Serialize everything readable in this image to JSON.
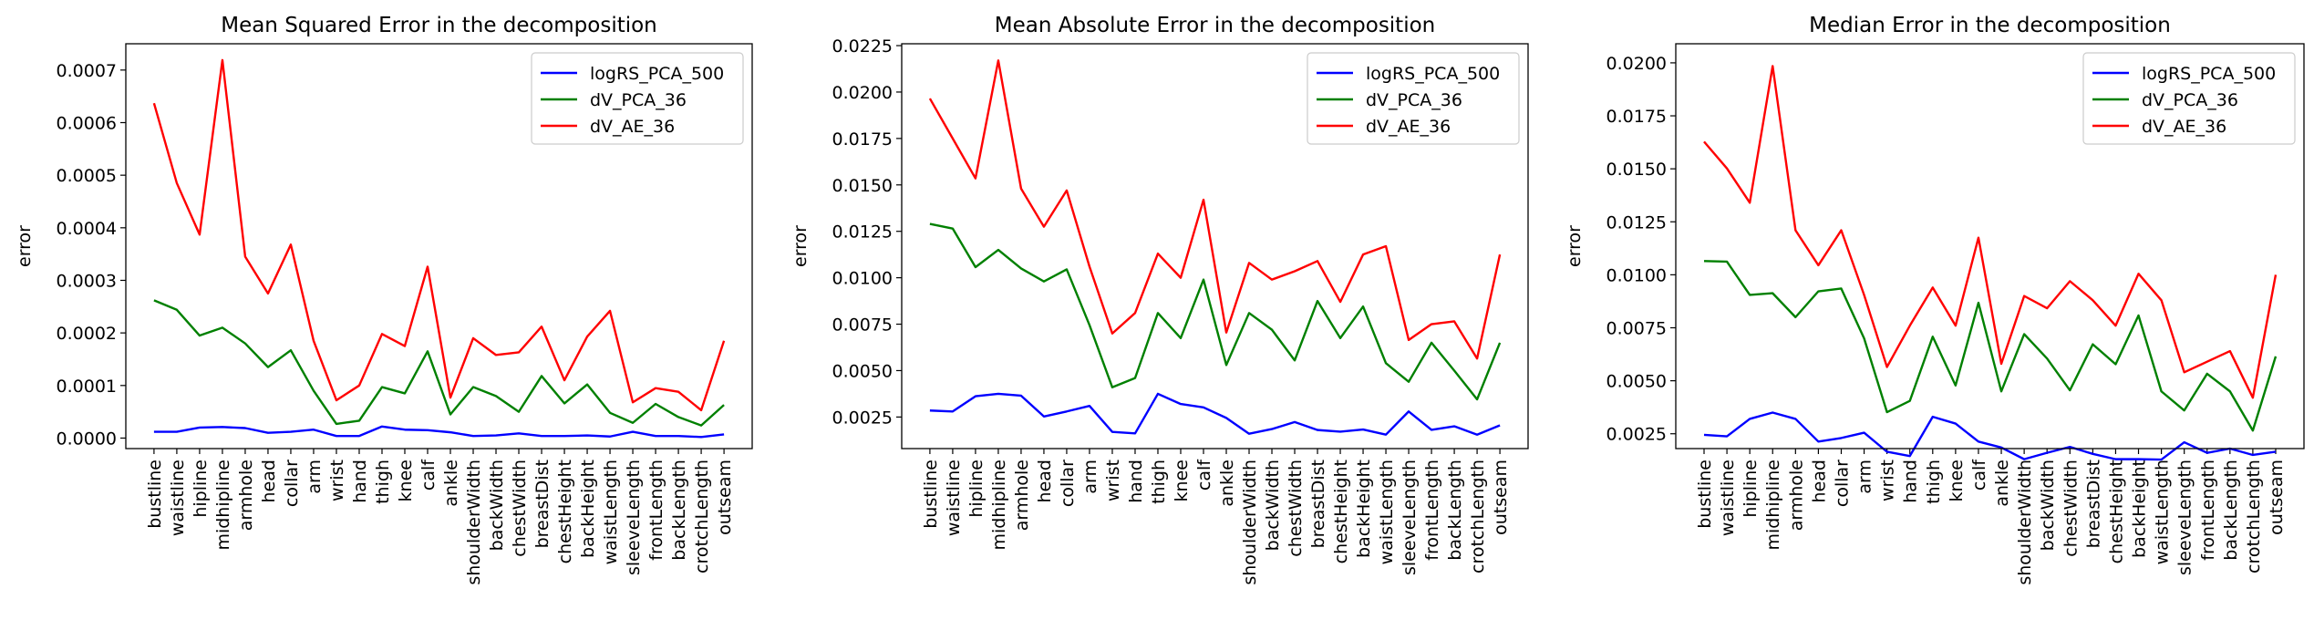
{
  "chart_data": [
    {
      "type": "line",
      "title": "Mean Squared Error in the decomposition",
      "xlabel": "",
      "ylabel": "error",
      "ylim": [
        -2e-05,
        0.00075
      ],
      "yticks": [
        0.0,
        0.0001,
        0.0002,
        0.0003,
        0.0004,
        0.0005,
        0.0006,
        0.0007
      ],
      "ytick_labels": [
        "0.0000",
        "0.0001",
        "0.0002",
        "0.0003",
        "0.0004",
        "0.0005",
        "0.0006",
        "0.0007"
      ],
      "legend_position": "top-right",
      "categories": [
        "bustline",
        "waistline",
        "hipline",
        "midhipline",
        "armhole",
        "head",
        "collar",
        "arm",
        "wrist",
        "hand",
        "thigh",
        "knee",
        "calf",
        "ankle",
        "shoulderWidth",
        "backWidth",
        "chestWidth",
        "breastDist",
        "chestHeight",
        "backHeight",
        "waistLength",
        "sleeveLength",
        "frontLength",
        "backLength",
        "crotchLength",
        "outseam"
      ],
      "series": [
        {
          "name": "logRS_PCA_500",
          "color": "#0000ff",
          "values": [
            1.2e-05,
            1.2e-05,
            2e-05,
            2.1e-05,
            1.9e-05,
            1e-05,
            1.2e-05,
            1.6e-05,
            4e-06,
            4e-06,
            2.2e-05,
            1.6e-05,
            1.5e-05,
            1.1e-05,
            4e-06,
            5e-06,
            9e-06,
            4e-06,
            4e-06,
            5e-06,
            3e-06,
            1.2e-05,
            4e-06,
            4e-06,
            2e-06,
            7e-06
          ]
        },
        {
          "name": "dV_PCA_36",
          "color": "#008000",
          "values": [
            0.000262,
            0.000244,
            0.000195,
            0.00021,
            0.00018,
            0.000135,
            0.000167,
            9e-05,
            2.7e-05,
            3.3e-05,
            9.7e-05,
            8.5e-05,
            0.000165,
            4.5e-05,
            9.7e-05,
            8e-05,
            5e-05,
            0.000118,
            6.6e-05,
            0.000102,
            4.8e-05,
            2.9e-05,
            6.5e-05,
            4e-05,
            2.4e-05,
            6.3e-05
          ]
        },
        {
          "name": "dV_AE_36",
          "color": "#ff0000",
          "values": [
            0.000637,
            0.000485,
            0.000387,
            0.000719,
            0.000345,
            0.000275,
            0.000368,
            0.000185,
            7.2e-05,
            0.0001,
            0.000198,
            0.000175,
            0.000326,
            7.7e-05,
            0.00019,
            0.000158,
            0.000163,
            0.000212,
            0.00011,
            0.000193,
            0.000242,
            6.8e-05,
            9.5e-05,
            8.8e-05,
            5.3e-05,
            0.000185
          ]
        }
      ]
    },
    {
      "type": "line",
      "title": "Mean Absolute Error in the decomposition",
      "xlabel": "",
      "ylabel": "error",
      "ylim": [
        0.0008,
        0.0226
      ],
      "yticks": [
        0.0025,
        0.005,
        0.0075,
        0.01,
        0.0125,
        0.015,
        0.0175,
        0.02,
        0.0225
      ],
      "ytick_labels": [
        "0.0025",
        "0.0050",
        "0.0075",
        "0.0100",
        "0.0125",
        "0.0150",
        "0.0175",
        "0.0200",
        "0.0225"
      ],
      "legend_position": "top-right",
      "categories": [
        "bustline",
        "waistline",
        "hipline",
        "midhipline",
        "armhole",
        "head",
        "collar",
        "arm",
        "wrist",
        "hand",
        "thigh",
        "knee",
        "calf",
        "ankle",
        "shoulderWidth",
        "backWidth",
        "chestWidth",
        "breastDist",
        "chestHeight",
        "backHeight",
        "waistLength",
        "sleeveLength",
        "frontLength",
        "backLength",
        "crotchLength",
        "outseam"
      ],
      "series": [
        {
          "name": "logRS_PCA_500",
          "color": "#0000ff",
          "values": [
            0.00285,
            0.0028,
            0.00362,
            0.00375,
            0.00365,
            0.00253,
            0.0028,
            0.0031,
            0.0017,
            0.00162,
            0.00375,
            0.0032,
            0.00302,
            0.00245,
            0.0016,
            0.00185,
            0.00223,
            0.0018,
            0.00171,
            0.00183,
            0.00155,
            0.0028,
            0.00181,
            0.002,
            0.00155,
            0.00205
          ]
        },
        {
          "name": "dV_PCA_36",
          "color": "#008000",
          "values": [
            0.0129,
            0.01265,
            0.01057,
            0.0115,
            0.0105,
            0.0098,
            0.01045,
            0.00745,
            0.0041,
            0.0046,
            0.0081,
            0.00675,
            0.0099,
            0.0053,
            0.0081,
            0.0072,
            0.00555,
            0.00875,
            0.00675,
            0.00845,
            0.0054,
            0.0044,
            0.0065,
            0.005,
            0.00345,
            0.0065
          ]
        },
        {
          "name": "dV_AE_36",
          "color": "#ff0000",
          "values": [
            0.01965,
            0.0175,
            0.01535,
            0.0217,
            0.0148,
            0.01275,
            0.0147,
            0.0106,
            0.007,
            0.0081,
            0.0113,
            0.01,
            0.0142,
            0.00705,
            0.0108,
            0.0099,
            0.01035,
            0.0109,
            0.0087,
            0.01125,
            0.0117,
            0.00665,
            0.0075,
            0.00765,
            0.00565,
            0.01125
          ]
        }
      ]
    },
    {
      "type": "line",
      "title": "Median Error in the decomposition",
      "xlabel": "",
      "ylabel": "error",
      "ylim": [
        0.0018,
        0.0209
      ],
      "yticks": [
        0.0025,
        0.005,
        0.0075,
        0.01,
        0.0125,
        0.015,
        0.0175,
        0.02
      ],
      "ytick_labels": [
        "0.0025",
        "0.0050",
        "0.0075",
        "0.0100",
        "0.0125",
        "0.0150",
        "0.0175",
        "0.0200"
      ],
      "legend_position": "top-right",
      "categories": [
        "bustline",
        "waistline",
        "hipline",
        "midhipline",
        "armhole",
        "head",
        "collar",
        "arm",
        "wrist",
        "hand",
        "thigh",
        "knee",
        "calf",
        "ankle",
        "shoulderWidth",
        "backWidth",
        "chestWidth",
        "breastDist",
        "chestHeight",
        "backHeight",
        "waistLength",
        "sleeveLength",
        "frontLength",
        "backLength",
        "crotchLength",
        "outseam"
      ],
      "series": [
        {
          "name": "logRS_PCA_500",
          "color": "#0000ff",
          "values": [
            0.00245,
            0.00238,
            0.0032,
            0.0035,
            0.0032,
            0.00213,
            0.0023,
            0.00255,
            0.00165,
            0.00145,
            0.0033,
            0.00298,
            0.00213,
            0.00185,
            0.0013,
            0.0016,
            0.00188,
            0.00155,
            0.0013,
            0.0013,
            0.00128,
            0.0021,
            0.0016,
            0.0018,
            0.0015,
            0.00165
          ]
        },
        {
          "name": "dV_PCA_36",
          "color": "#008000",
          "values": [
            0.01065,
            0.01062,
            0.00905,
            0.00913,
            0.008,
            0.00922,
            0.00935,
            0.007,
            0.00352,
            0.00405,
            0.00708,
            0.00478,
            0.00868,
            0.0045,
            0.0072,
            0.00605,
            0.00455,
            0.00672,
            0.00578,
            0.00808,
            0.0045,
            0.0036,
            0.00533,
            0.0045,
            0.00265,
            0.00615
          ]
        },
        {
          "name": "dV_AE_36",
          "color": "#ff0000",
          "values": [
            0.01628,
            0.01502,
            0.0134,
            0.01985,
            0.0121,
            0.01045,
            0.0121,
            0.00905,
            0.00565,
            0.0076,
            0.0094,
            0.0076,
            0.01175,
            0.0058,
            0.009,
            0.00842,
            0.0097,
            0.0088,
            0.0076,
            0.01005,
            0.0088,
            0.0054,
            0.0059,
            0.0064,
            0.0042,
            0.01
          ]
        }
      ]
    }
  ]
}
